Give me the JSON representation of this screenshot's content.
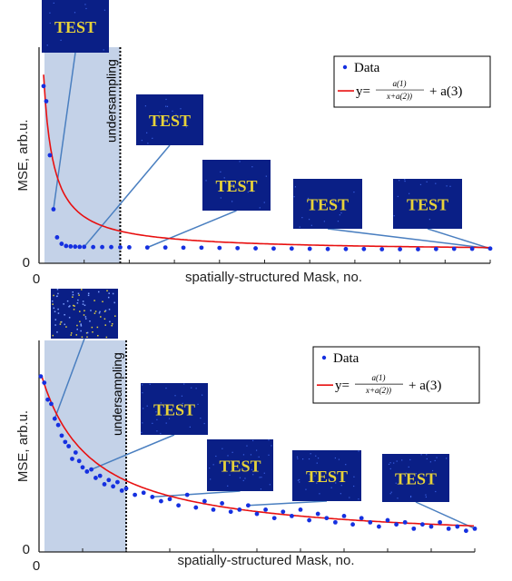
{
  "colors": {
    "data_points": "#1530e0",
    "fit_line": "#e81010",
    "shade": "#c4d2e8",
    "callout_line": "#4a7fc0",
    "thumb_bg": "#0a1f86",
    "thumb_text": "#e6d23a",
    "axis": "#222222"
  },
  "chart_data": [
    {
      "type": "scatter",
      "xlabel": "spatially-structured Mask, no.",
      "ylabel": "MSE, arb.u.",
      "xtick_labels": [
        "0"
      ],
      "ytick_labels": [
        "0"
      ],
      "xlim": [
        0,
        500
      ],
      "ylim": [
        0,
        1
      ],
      "grid": false,
      "shaded_region": [
        0,
        90
      ],
      "threshold_x": 90,
      "threshold_label": "undersampling",
      "legend": {
        "position": "top-right",
        "entries": [
          "Data",
          "y=",
          "a(1)",
          "x+a(2))",
          "+ a(3)"
        ]
      },
      "thumbnail_text": "TEST",
      "thumbnail_style": "clean",
      "thumbnail_targets_x": [
        15,
        55,
        130,
        500
      ],
      "series": [
        {
          "name": "Data",
          "kind": "points",
          "x": [
            5,
            8,
            12,
            16,
            20,
            25,
            30,
            35,
            40,
            45,
            50,
            60,
            70,
            80,
            90,
            100,
            120,
            140,
            160,
            180,
            200,
            220,
            240,
            260,
            280,
            300,
            320,
            340,
            360,
            380,
            400,
            420,
            440,
            460,
            480,
            500
          ],
          "y": [
            0.82,
            0.75,
            0.5,
            0.25,
            0.12,
            0.09,
            0.08,
            0.078,
            0.077,
            0.076,
            0.076,
            0.075,
            0.075,
            0.075,
            0.074,
            0.074,
            0.073,
            0.073,
            0.072,
            0.072,
            0.071,
            0.07,
            0.069,
            0.068,
            0.068,
            0.067,
            0.066,
            0.066,
            0.066,
            0.065,
            0.065,
            0.065,
            0.066,
            0.067,
            0.067,
            0.068
          ]
        },
        {
          "name": "y=a(1)/(x+a(2)) + a(3)",
          "kind": "fit",
          "params": [
            9,
            6,
            0.055
          ]
        }
      ]
    },
    {
      "type": "scatter",
      "xlabel": "spatially-structured Mask, no.",
      "ylabel": "MSE, arb.u.",
      "xtick_labels": [
        "0"
      ],
      "ytick_labels": [
        "0"
      ],
      "xlim": [
        0,
        500
      ],
      "ylim": [
        0,
        1
      ],
      "grid": false,
      "shaded_region": [
        0,
        100
      ],
      "threshold_x": 100,
      "threshold_label": "undersampling",
      "legend": {
        "position": "top-right",
        "entries": [
          "Data",
          "y=",
          "a(1)",
          "x+a(2))",
          "+ a(3)"
        ]
      },
      "thumbnail_text": "TEST",
      "thumbnail_style": "noisy",
      "thumbnail_targets_x": [
        20,
        60,
        130,
        240,
        500
      ],
      "series": [
        {
          "name": "Data",
          "kind": "points",
          "x": [
            2,
            6,
            10,
            14,
            18,
            22,
            26,
            30,
            34,
            38,
            42,
            46,
            50,
            55,
            60,
            65,
            70,
            75,
            80,
            85,
            90,
            95,
            100,
            110,
            120,
            130,
            140,
            150,
            160,
            170,
            180,
            190,
            200,
            210,
            220,
            230,
            240,
            250,
            260,
            270,
            280,
            290,
            300,
            310,
            320,
            330,
            340,
            350,
            360,
            370,
            380,
            390,
            400,
            410,
            420,
            430,
            440,
            450,
            460,
            470,
            480,
            490,
            500
          ],
          "y": [
            0.83,
            0.8,
            0.72,
            0.7,
            0.63,
            0.6,
            0.55,
            0.52,
            0.5,
            0.44,
            0.47,
            0.43,
            0.4,
            0.38,
            0.39,
            0.35,
            0.36,
            0.32,
            0.34,
            0.31,
            0.33,
            0.29,
            0.3,
            0.27,
            0.28,
            0.26,
            0.24,
            0.25,
            0.22,
            0.27,
            0.21,
            0.24,
            0.2,
            0.23,
            0.19,
            0.2,
            0.22,
            0.18,
            0.2,
            0.16,
            0.19,
            0.17,
            0.2,
            0.15,
            0.18,
            0.16,
            0.14,
            0.17,
            0.13,
            0.16,
            0.14,
            0.12,
            0.15,
            0.13,
            0.14,
            0.11,
            0.13,
            0.12,
            0.14,
            0.11,
            0.12,
            0.1,
            0.11
          ]
        },
        {
          "name": "y=a(1)/(x+a(2)) + a(3)",
          "kind": "fit",
          "params": [
            46,
            55,
            0.04
          ]
        }
      ]
    }
  ]
}
